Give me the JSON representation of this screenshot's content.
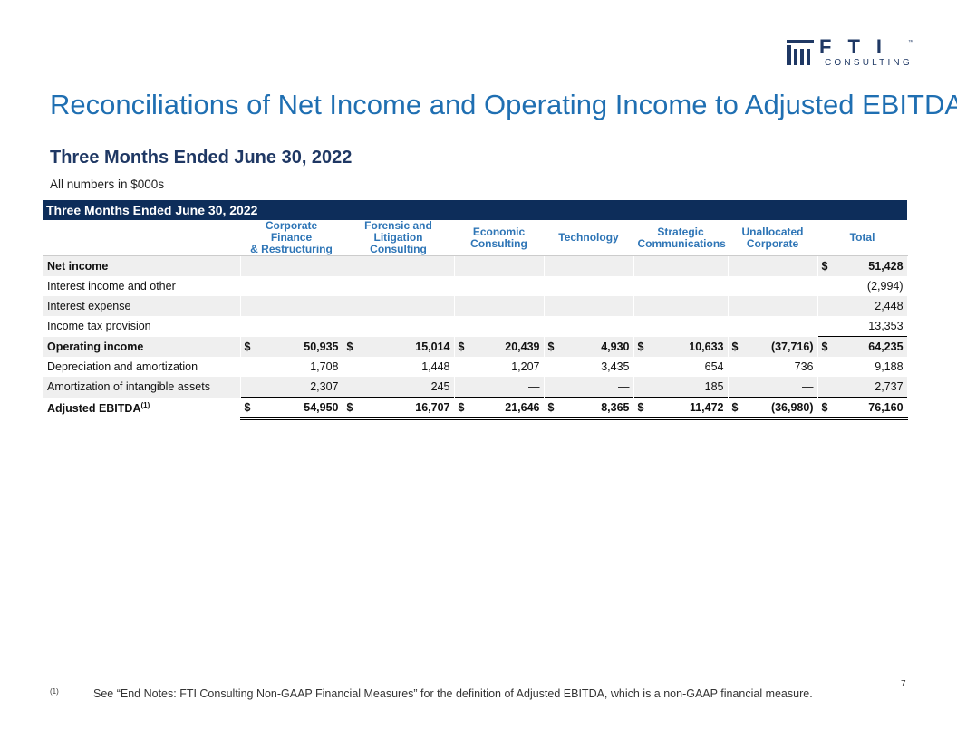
{
  "logo": {
    "name": "FTI",
    "sub": "CONSULTING",
    "tm": "™"
  },
  "title": "Reconciliations of Net Income and Operating Income to Adjusted EBITDA",
  "subtitle": "Three Months Ended June 30, 2022",
  "note": "All numbers in $000s",
  "table": {
    "caption": "Three Months Ended June 30, 2022",
    "columns": [
      [
        "Corporate Finance",
        "& Restructuring"
      ],
      [
        "Forensic and",
        "Litigation Consulting"
      ],
      [
        "Economic",
        "Consulting"
      ],
      [
        "Technology"
      ],
      [
        "Strategic",
        "Communications"
      ],
      [
        "Unallocated",
        "Corporate"
      ],
      [
        "Total"
      ]
    ],
    "rows": [
      {
        "label": "Net income",
        "cells": [
          null,
          null,
          null,
          null,
          null,
          null,
          {
            "currency": "$",
            "value": "51,428"
          }
        ]
      },
      {
        "label": "Interest income and other",
        "cells": [
          null,
          null,
          null,
          null,
          null,
          null,
          {
            "value": "(2,994)"
          }
        ]
      },
      {
        "label": "Interest expense",
        "cells": [
          null,
          null,
          null,
          null,
          null,
          null,
          {
            "value": "2,448"
          }
        ]
      },
      {
        "label": "Income tax provision",
        "cells": [
          null,
          null,
          null,
          null,
          null,
          null,
          {
            "value": "13,353"
          }
        ]
      },
      {
        "label": "Operating income",
        "cells": [
          {
            "currency": "$",
            "value": "50,935"
          },
          {
            "currency": "$",
            "value": "15,014"
          },
          {
            "currency": "$",
            "value": "20,439"
          },
          {
            "currency": "$",
            "value": "4,930"
          },
          {
            "currency": "$",
            "value": "10,633"
          },
          {
            "currency": "$",
            "value": "(37,716)"
          },
          {
            "currency": "$",
            "value": "64,235"
          }
        ]
      },
      {
        "label": "Depreciation and amortization",
        "cells": [
          {
            "value": "1,708"
          },
          {
            "value": "1,448"
          },
          {
            "value": "1,207"
          },
          {
            "value": "3,435"
          },
          {
            "value": "654"
          },
          {
            "value": "736"
          },
          {
            "value": "9,188"
          }
        ]
      },
      {
        "label": "Amortization of intangible assets",
        "cells": [
          {
            "value": "2,307"
          },
          {
            "value": "245"
          },
          {
            "value": "—"
          },
          {
            "value": "—"
          },
          {
            "value": "185"
          },
          {
            "value": "—"
          },
          {
            "value": "2,737"
          }
        ]
      },
      {
        "label": "Adjusted EBITDA",
        "note": "(1)",
        "cells": [
          {
            "currency": "$",
            "value": "54,950"
          },
          {
            "currency": "$",
            "value": "16,707"
          },
          {
            "currency": "$",
            "value": "21,646"
          },
          {
            "currency": "$",
            "value": "8,365"
          },
          {
            "currency": "$",
            "value": "11,472"
          },
          {
            "currency": "$",
            "value": "(36,980)"
          },
          {
            "currency": "$",
            "value": "76,160"
          }
        ]
      }
    ]
  },
  "footnote": {
    "marker": "(1)",
    "text": "See “End Notes: FTI Consulting Non-GAAP Financial Measures” for the definition of Adjusted EBITDA, which is a non-GAAP financial measure."
  },
  "page_number": "7"
}
